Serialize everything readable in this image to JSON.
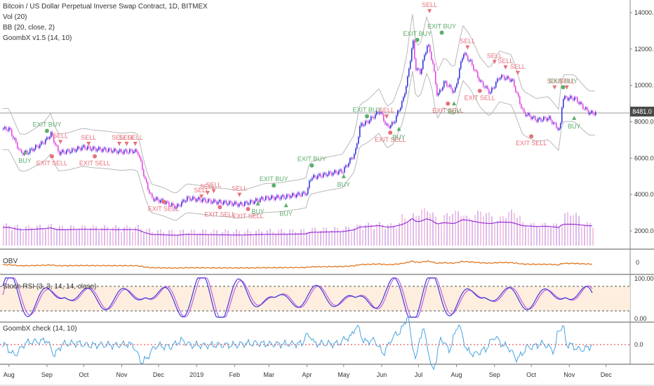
{
  "title": "Bitcoin / US Dollar Perpetual Inverse Swap Contract, 1D, BITMEX",
  "indicators": [
    "Vol (20)",
    "BB (20, close, 2)",
    "GoombX v1.5 (14, 10)"
  ],
  "last_price": "8481.0",
  "panels": {
    "obv": {
      "title": "OBV",
      "tick": "0"
    },
    "stoch": {
      "title": "Stoch RSI (3, 3, 14, 14, close)",
      "ticks": [
        "100.00",
        "0.00"
      ]
    },
    "check": {
      "title": "GoombX check (14, 10)",
      "tick": "0.0"
    }
  },
  "colors": {
    "candle_up": "#2a2ad8",
    "candle_down": "#e040e0",
    "bb": "#b8b8b8",
    "volume_ma": "#9b30d9",
    "obv": "#e0761e",
    "stoch_k": "#3b3bd6",
    "stoch_d": "#c65ee0",
    "check": "#4aa3e0",
    "buy": "#5cae6b",
    "sell": "#e8707a",
    "zero_line": "#e03030"
  },
  "chart_data": {
    "type": "line",
    "x_ticks": [
      "Aug",
      "Sep",
      "Oct",
      "Nov",
      "Dec",
      "2019",
      "Feb",
      "Mar",
      "Apr",
      "May",
      "Jun",
      "Jul",
      "Aug",
      "Sep",
      "Oct",
      "Nov",
      "Dec"
    ],
    "y_ticks": [
      "14000.0",
      "12000.0",
      "10000.0",
      "8000.0",
      "6000.0",
      "4000.0",
      "2000.0"
    ],
    "ylim": [
      0,
      14700
    ],
    "price_series": [
      [
        "2018-08-01",
        7600
      ],
      [
        "2018-08-05",
        7000
      ],
      [
        "2018-08-10",
        6300
      ],
      [
        "2018-08-15",
        6300
      ],
      [
        "2018-08-20",
        6500
      ],
      [
        "2018-08-25",
        6700
      ],
      [
        "2018-08-31",
        7000
      ],
      [
        "2018-09-04",
        7350
      ],
      [
        "2018-09-10",
        6300
      ],
      [
        "2018-09-20",
        6400
      ],
      [
        "2018-09-30",
        6600
      ],
      [
        "2018-10-10",
        6500
      ],
      [
        "2018-10-20",
        6450
      ],
      [
        "2018-10-31",
        6350
      ],
      [
        "2018-11-10",
        6400
      ],
      [
        "2018-11-14",
        6300
      ],
      [
        "2018-11-20",
        4700
      ],
      [
        "2018-11-25",
        3800
      ],
      [
        "2018-12-05",
        3600
      ],
      [
        "2018-12-15",
        3300
      ],
      [
        "2018-12-24",
        3800
      ],
      [
        "2019-01-05",
        3700
      ],
      [
        "2019-01-15",
        3600
      ],
      [
        "2019-01-25",
        3550
      ],
      [
        "2019-02-05",
        3450
      ],
      [
        "2019-02-15",
        3600
      ],
      [
        "2019-02-25",
        3800
      ],
      [
        "2019-03-10",
        3850
      ],
      [
        "2019-03-25",
        4000
      ],
      [
        "2019-04-01",
        4100
      ],
      [
        "2019-04-03",
        4900
      ],
      [
        "2019-04-15",
        5100
      ],
      [
        "2019-04-30",
        5300
      ],
      [
        "2019-05-10",
        6300
      ],
      [
        "2019-05-14",
        7800
      ],
      [
        "2019-05-20",
        8000
      ],
      [
        "2019-05-30",
        8600
      ],
      [
        "2019-06-05",
        7700
      ],
      [
        "2019-06-10",
        7900
      ],
      [
        "2019-06-18",
        9200
      ],
      [
        "2019-06-22",
        10500
      ],
      [
        "2019-06-26",
        12500
      ],
      [
        "2019-06-28",
        11000
      ],
      [
        "2019-07-02",
        10700
      ],
      [
        "2019-07-08",
        12300
      ],
      [
        "2019-07-12",
        11300
      ],
      [
        "2019-07-16",
        9400
      ],
      [
        "2019-07-22",
        10200
      ],
      [
        "2019-07-30",
        9600
      ],
      [
        "2019-08-06",
        11800
      ],
      [
        "2019-08-12",
        11300
      ],
      [
        "2019-08-20",
        10200
      ],
      [
        "2019-08-28",
        9600
      ],
      [
        "2019-09-05",
        10500
      ],
      [
        "2019-09-15",
        10300
      ],
      [
        "2019-09-24",
        8500
      ],
      [
        "2019-10-05",
        8100
      ],
      [
        "2019-10-15",
        8200
      ],
      [
        "2019-10-24",
        7500
      ],
      [
        "2019-10-26",
        9300
      ],
      [
        "2019-11-05",
        9300
      ],
      [
        "2019-11-12",
        8800
      ],
      [
        "2019-11-17",
        8481
      ]
    ],
    "signals": [
      {
        "type": "BUY",
        "date": "2018-08-14",
        "price": 6200
      },
      {
        "type": "EXIT BUY",
        "date": "2018-09-01",
        "price": 7500
      },
      {
        "type": "EXIT SELL",
        "date": "2018-09-05",
        "price": 6100
      },
      {
        "type": "SELL",
        "date": "2018-09-12",
        "price": 7000
      },
      {
        "type": "SELL",
        "date": "2018-10-05",
        "price": 6900
      },
      {
        "type": "EXIT SELL",
        "date": "2018-10-10",
        "price": 6100
      },
      {
        "type": "SELL",
        "date": "2018-10-30",
        "price": 6900
      },
      {
        "type": "SELL",
        "date": "2018-11-05",
        "price": 6900
      },
      {
        "type": "SELL",
        "date": "2018-11-12",
        "price": 6900
      },
      {
        "type": "EXIT SELL",
        "date": "2018-12-05",
        "price": 3600
      },
      {
        "type": "SELL",
        "date": "2019-01-05",
        "price": 4000
      },
      {
        "type": "SELL",
        "date": "2019-01-10",
        "price": 4200
      },
      {
        "type": "SELL",
        "date": "2019-01-15",
        "price": 4300
      },
      {
        "type": "EXIT SELL",
        "date": "2019-01-20",
        "price": 3300
      },
      {
        "type": "SELL",
        "date": "2019-02-05",
        "price": 4100
      },
      {
        "type": "EXIT SELL",
        "date": "2019-02-12",
        "price": 3200
      },
      {
        "type": "BUY",
        "date": "2019-02-20",
        "price": 3400
      },
      {
        "type": "EXIT BUY",
        "date": "2019-03-05",
        "price": 4500
      },
      {
        "type": "BUY",
        "date": "2019-03-15",
        "price": 3300
      },
      {
        "type": "EXIT BUY",
        "date": "2019-04-05",
        "price": 5600
      },
      {
        "type": "BUY",
        "date": "2019-05-01",
        "price": 4900
      },
      {
        "type": "EXIT BUY",
        "date": "2019-05-20",
        "price": 8300
      },
      {
        "type": "SELL",
        "date": "2019-06-05",
        "price": 8400
      },
      {
        "type": "EXIT SELL",
        "date": "2019-06-08",
        "price": 7400
      },
      {
        "type": "BUY",
        "date": "2019-06-15",
        "price": 7500
      },
      {
        "type": "EXIT BUY",
        "date": "2019-06-30",
        "price": 12500
      },
      {
        "type": "SELL",
        "date": "2019-07-10",
        "price": 14200
      },
      {
        "type": "EXIT BUY",
        "date": "2019-07-20",
        "price": 12900
      },
      {
        "type": "EXIT SELL",
        "date": "2019-07-25",
        "price": 9000
      },
      {
        "type": "BUY",
        "date": "2019-07-30",
        "price": 8900
      },
      {
        "type": "SELL",
        "date": "2019-08-10",
        "price": 12200
      },
      {
        "type": "EXIT SELL",
        "date": "2019-08-20",
        "price": 9700
      },
      {
        "type": "SELL",
        "date": "2019-09-01",
        "price": 11400
      },
      {
        "type": "SELL",
        "date": "2019-09-10",
        "price": 11100
      },
      {
        "type": "SELL",
        "date": "2019-09-20",
        "price": 10800
      },
      {
        "type": "EXIT SELL",
        "date": "2019-10-01",
        "price": 7200
      },
      {
        "type": "SELL",
        "date": "2019-10-20",
        "price": 10000
      },
      {
        "type": "EXIT BUY",
        "date": "2019-10-27",
        "price": 9900
      },
      {
        "type": "SELL",
        "date": "2019-10-30",
        "price": 10000
      },
      {
        "type": "BUY",
        "date": "2019-11-05",
        "price": 8100
      }
    ]
  }
}
